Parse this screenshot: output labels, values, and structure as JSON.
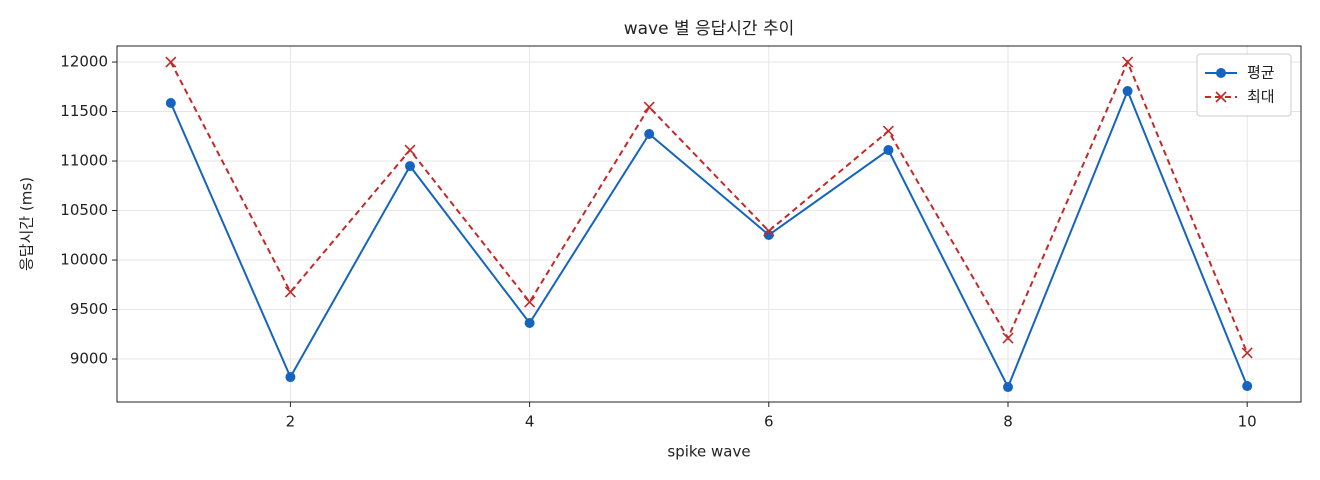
{
  "chart_data": {
    "type": "line",
    "title": "wave 별 응답시간 추이",
    "x_label": "spike wave",
    "y_label": "응답시간 (ms)",
    "x": [
      1,
      2,
      3,
      4,
      5,
      6,
      7,
      8,
      9,
      10
    ],
    "series": [
      {
        "name": "평균",
        "color": "#1565c0",
        "marker": "circle",
        "dash": false,
        "values": [
          11586,
          8818,
          10949,
          9364,
          11273,
          10253,
          11111,
          8717,
          11707,
          8727
        ]
      },
      {
        "name": "최대",
        "color": "#c62828",
        "marker": "x",
        "dash": true,
        "values": [
          12000,
          9677,
          11111,
          9576,
          11545,
          10293,
          11303,
          9212,
          12000,
          9061
        ]
      }
    ],
    "xlim": [
      0.55,
      10.45
    ],
    "ylim": [
      8566,
      12162
    ],
    "xticks": [
      2,
      4,
      6,
      8,
      10
    ],
    "yticks": [
      9000,
      9500,
      10000,
      10500,
      11000,
      11500,
      12000
    ],
    "grid": true,
    "legend": "upper right"
  }
}
